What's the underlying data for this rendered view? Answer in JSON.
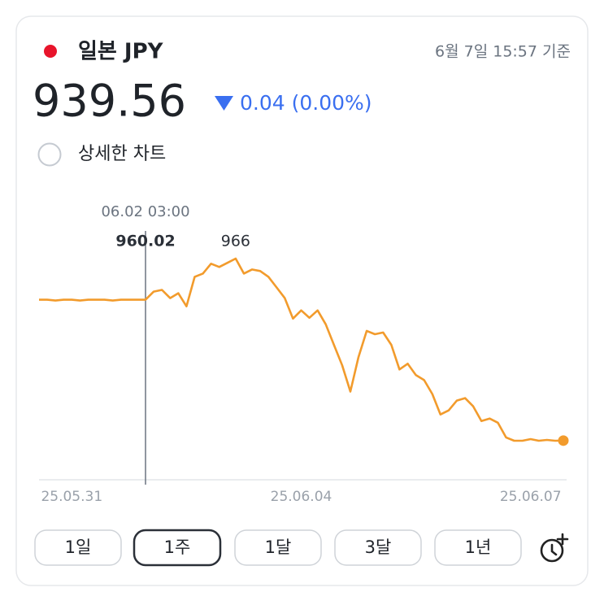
{
  "header": {
    "currency": "일본 JPY",
    "timestamp": "6월 7일 15:57 기준",
    "change": "0.04 (0.00%)",
    "detail_chart": "상세한 차트"
  },
  "chart_data": {
    "type": "line",
    "color": "#f29b2c",
    "tooltip_label": "06.02 03:00",
    "categories": [
      null,
      null,
      null,
      null,
      "25.05.31",
      null,
      null,
      null,
      null,
      null,
      null,
      null,
      null,
      null,
      null,
      null,
      null,
      null,
      null,
      null,
      null,
      null,
      null,
      null,
      null,
      null,
      null,
      null,
      null,
      null,
      null,
      null,
      "25.06.04",
      null,
      null,
      null,
      null,
      null,
      null,
      null,
      null,
      null,
      null,
      null,
      null,
      null,
      null,
      null,
      null,
      null,
      null,
      null,
      null,
      null,
      null,
      null,
      null,
      null,
      null,
      null,
      "25.06.07",
      null,
      null,
      null,
      null
    ],
    "values": [
      960.02,
      960.02,
      959.9,
      960.02,
      960.02,
      959.9,
      960.02,
      960.02,
      960.02,
      959.9,
      960.02,
      960.02,
      960.02,
      960.02,
      961.21,
      961.45,
      960.26,
      960.97,
      959.07,
      963.35,
      963.83,
      965.26,
      964.78,
      965.38,
      966,
      963.83,
      964.42,
      964.19,
      963.35,
      961.81,
      960.26,
      957.28,
      958.47,
      957.4,
      958.47,
      956.45,
      953.47,
      950.5,
      946.69,
      951.69,
      955.5,
      955.02,
      955.26,
      953.47,
      949.9,
      950.73,
      949.07,
      948.35,
      946.33,
      943.35,
      943.95,
      945.38,
      945.73,
      944.54,
      942.4,
      942.76,
      942.16,
      940.02,
      939.54,
      939.54,
      939.78,
      939.54,
      939.66,
      939.54,
      939.56
    ]
  },
  "buttons": [
    "1일",
    "1주",
    "1달",
    "3달",
    "1년"
  ],
  "selected_button": 1
}
